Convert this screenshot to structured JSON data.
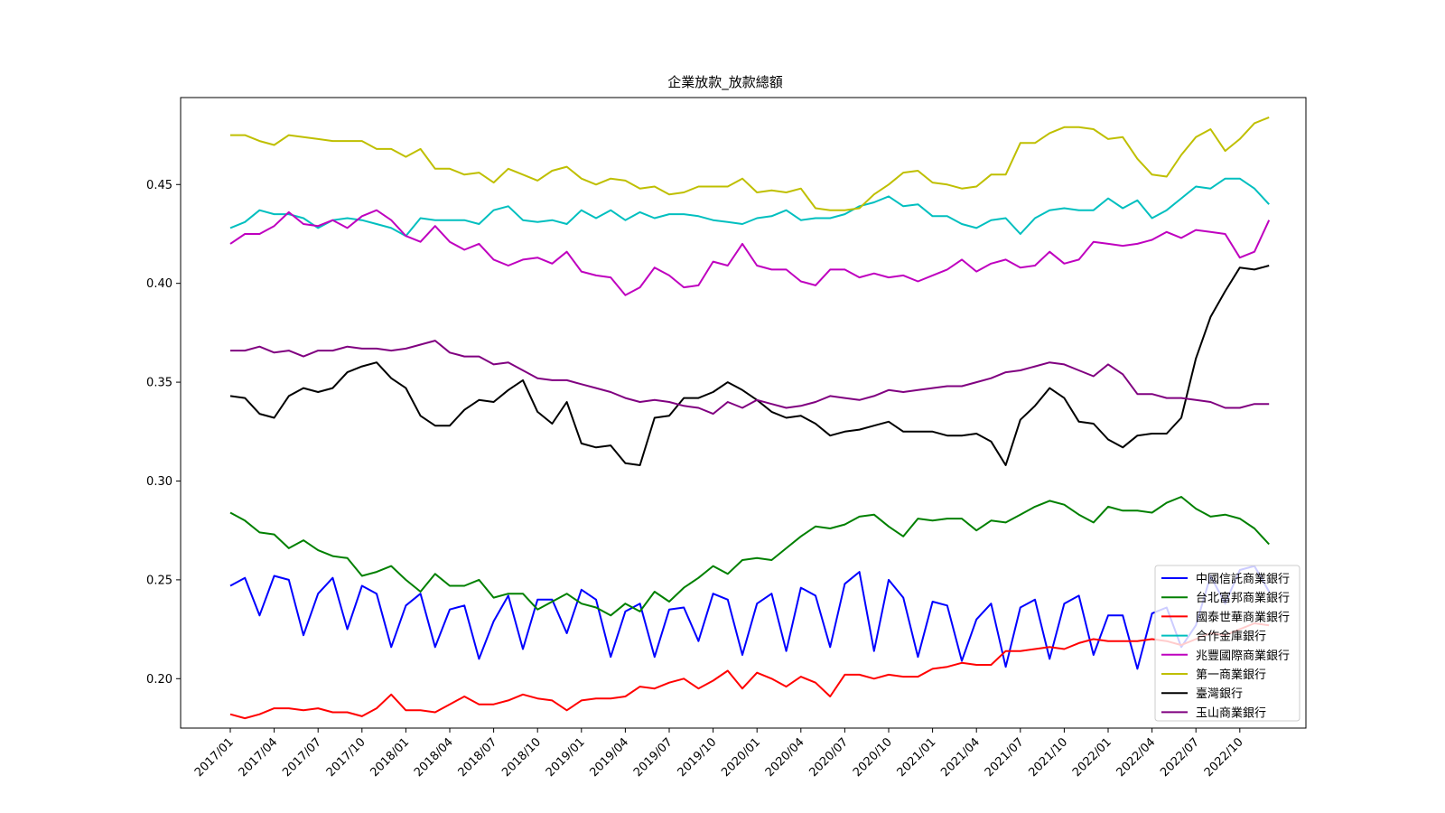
{
  "chart_data": {
    "type": "line",
    "title": "企業放款_放款總額",
    "xlabel": "",
    "ylabel": "",
    "ylim": [
      0.175,
      0.494
    ],
    "yticks": [
      0.2,
      0.25,
      0.3,
      0.35,
      0.4,
      0.45
    ],
    "ytick_labels": [
      "0.20",
      "0.25",
      "0.30",
      "0.35",
      "0.40",
      "0.45"
    ],
    "xtick_labels": [
      "2017/01",
      "2017/04",
      "2017/07",
      "2017/10",
      "2018/01",
      "2018/04",
      "2018/07",
      "2018/10",
      "2019/01",
      "2019/04",
      "2019/07",
      "2019/10",
      "2020/01",
      "2020/04",
      "2020/07",
      "2020/10",
      "2021/01",
      "2021/04",
      "2021/07",
      "2021/10",
      "2022/01",
      "2022/04",
      "2022/07",
      "2022/10"
    ],
    "grid": false,
    "legend_position": "lower-right",
    "x_start": "2017/01",
    "x_end": "2022/12",
    "series": [
      {
        "name": "中國信託商業銀行",
        "color": "#0000ff",
        "values": [
          0.247,
          0.251,
          0.232,
          0.252,
          0.25,
          0.222,
          0.243,
          0.251,
          0.225,
          0.247,
          0.243,
          0.216,
          0.237,
          0.243,
          0.216,
          0.235,
          0.237,
          0.21,
          0.229,
          0.242,
          0.215,
          0.24,
          0.24,
          0.223,
          0.245,
          0.24,
          0.211,
          0.234,
          0.238,
          0.211,
          0.235,
          0.236,
          0.219,
          0.243,
          0.24,
          0.212,
          0.238,
          0.243,
          0.214,
          0.246,
          0.242,
          0.216,
          0.248,
          0.254,
          0.214,
          0.25,
          0.241,
          0.211,
          0.239,
          0.237,
          0.209,
          0.23,
          0.238,
          0.206,
          0.236,
          0.24,
          0.21,
          0.238,
          0.242,
          0.212,
          0.232,
          0.232,
          0.205,
          0.233,
          0.236,
          0.216,
          0.227,
          0.252,
          0.238,
          0.255,
          0.257,
          0.244
        ]
      },
      {
        "name": "台北富邦商業銀行",
        "color": "#008000",
        "values": [
          0.284,
          0.28,
          0.274,
          0.273,
          0.266,
          0.27,
          0.265,
          0.262,
          0.261,
          0.252,
          0.254,
          0.257,
          0.25,
          0.244,
          0.253,
          0.247,
          0.247,
          0.25,
          0.241,
          0.243,
          0.243,
          0.235,
          0.239,
          0.243,
          0.238,
          0.236,
          0.232,
          0.238,
          0.234,
          0.244,
          0.239,
          0.246,
          0.251,
          0.257,
          0.253,
          0.26,
          0.261,
          0.26,
          0.266,
          0.272,
          0.277,
          0.276,
          0.278,
          0.282,
          0.283,
          0.277,
          0.272,
          0.281,
          0.28,
          0.281,
          0.281,
          0.275,
          0.28,
          0.279,
          0.283,
          0.287,
          0.29,
          0.288,
          0.283,
          0.279,
          0.287,
          0.285,
          0.285,
          0.284,
          0.289,
          0.292,
          0.286,
          0.282,
          0.283,
          0.281,
          0.276,
          0.268
        ]
      },
      {
        "name": "國泰世華商業銀行",
        "color": "#ff0000",
        "values": [
          0.182,
          0.18,
          0.182,
          0.185,
          0.185,
          0.184,
          0.185,
          0.183,
          0.183,
          0.181,
          0.185,
          0.192,
          0.184,
          0.184,
          0.183,
          0.187,
          0.191,
          0.187,
          0.187,
          0.189,
          0.192,
          0.19,
          0.189,
          0.184,
          0.189,
          0.19,
          0.19,
          0.191,
          0.196,
          0.195,
          0.198,
          0.2,
          0.195,
          0.199,
          0.204,
          0.195,
          0.203,
          0.2,
          0.196,
          0.201,
          0.198,
          0.191,
          0.202,
          0.202,
          0.2,
          0.202,
          0.201,
          0.201,
          0.205,
          0.206,
          0.208,
          0.207,
          0.207,
          0.214,
          0.214,
          0.215,
          0.216,
          0.215,
          0.218,
          0.22,
          0.219,
          0.219,
          0.219,
          0.22,
          0.219,
          0.217,
          0.22,
          0.223,
          0.222,
          0.225,
          0.228,
          0.227
        ]
      },
      {
        "name": "合作金庫銀行",
        "color": "#00bfbf",
        "values": [
          0.428,
          0.431,
          0.437,
          0.435,
          0.435,
          0.433,
          0.428,
          0.432,
          0.433,
          0.432,
          0.43,
          0.428,
          0.424,
          0.433,
          0.432,
          0.432,
          0.432,
          0.43,
          0.437,
          0.439,
          0.432,
          0.431,
          0.432,
          0.43,
          0.437,
          0.433,
          0.437,
          0.432,
          0.436,
          0.433,
          0.435,
          0.435,
          0.434,
          0.432,
          0.431,
          0.43,
          0.433,
          0.434,
          0.437,
          0.432,
          0.433,
          0.433,
          0.435,
          0.439,
          0.441,
          0.444,
          0.439,
          0.44,
          0.434,
          0.434,
          0.43,
          0.428,
          0.432,
          0.433,
          0.425,
          0.433,
          0.437,
          0.438,
          0.437,
          0.437,
          0.443,
          0.438,
          0.442,
          0.433,
          0.437,
          0.443,
          0.449,
          0.448,
          0.453,
          0.453,
          0.448,
          0.44
        ]
      },
      {
        "name": "兆豐國際商業銀行",
        "color": "#bf00bf",
        "values": [
          0.42,
          0.425,
          0.425,
          0.429,
          0.436,
          0.43,
          0.429,
          0.432,
          0.428,
          0.434,
          0.437,
          0.432,
          0.424,
          0.421,
          0.429,
          0.421,
          0.417,
          0.42,
          0.412,
          0.409,
          0.412,
          0.413,
          0.41,
          0.416,
          0.406,
          0.404,
          0.403,
          0.394,
          0.398,
          0.408,
          0.404,
          0.398,
          0.399,
          0.411,
          0.409,
          0.42,
          0.409,
          0.407,
          0.407,
          0.401,
          0.399,
          0.407,
          0.407,
          0.403,
          0.405,
          0.403,
          0.404,
          0.401,
          0.404,
          0.407,
          0.412,
          0.406,
          0.41,
          0.412,
          0.408,
          0.409,
          0.416,
          0.41,
          0.412,
          0.421,
          0.42,
          0.419,
          0.42,
          0.422,
          0.426,
          0.423,
          0.427,
          0.426,
          0.425,
          0.413,
          0.416,
          0.432
        ]
      },
      {
        "name": "第一商業銀行",
        "color": "#bfbf00",
        "values": [
          0.475,
          0.475,
          0.472,
          0.47,
          0.475,
          0.474,
          0.473,
          0.472,
          0.472,
          0.472,
          0.468,
          0.468,
          0.464,
          0.468,
          0.458,
          0.458,
          0.455,
          0.456,
          0.451,
          0.458,
          0.455,
          0.452,
          0.457,
          0.459,
          0.453,
          0.45,
          0.453,
          0.452,
          0.448,
          0.449,
          0.445,
          0.446,
          0.449,
          0.449,
          0.449,
          0.453,
          0.446,
          0.447,
          0.446,
          0.448,
          0.438,
          0.437,
          0.437,
          0.438,
          0.445,
          0.45,
          0.456,
          0.457,
          0.451,
          0.45,
          0.448,
          0.449,
          0.455,
          0.455,
          0.471,
          0.471,
          0.476,
          0.479,
          0.479,
          0.478,
          0.473,
          0.474,
          0.463,
          0.455,
          0.454,
          0.465,
          0.474,
          0.478,
          0.467,
          0.473,
          0.481,
          0.484
        ]
      },
      {
        "name": "臺灣銀行",
        "color": "#000000",
        "values": [
          0.343,
          0.342,
          0.334,
          0.332,
          0.343,
          0.347,
          0.345,
          0.347,
          0.355,
          0.358,
          0.36,
          0.352,
          0.347,
          0.333,
          0.328,
          0.328,
          0.336,
          0.341,
          0.34,
          0.346,
          0.351,
          0.335,
          0.329,
          0.34,
          0.319,
          0.317,
          0.318,
          0.309,
          0.308,
          0.332,
          0.333,
          0.342,
          0.342,
          0.345,
          0.35,
          0.346,
          0.341,
          0.335,
          0.332,
          0.333,
          0.329,
          0.323,
          0.325,
          0.326,
          0.328,
          0.33,
          0.325,
          0.325,
          0.325,
          0.323,
          0.323,
          0.324,
          0.32,
          0.308,
          0.331,
          0.338,
          0.347,
          0.342,
          0.33,
          0.329,
          0.321,
          0.317,
          0.323,
          0.324,
          0.324,
          0.332,
          0.362,
          0.383,
          0.396,
          0.408,
          0.407,
          0.409
        ]
      },
      {
        "name": "玉山商業銀行",
        "color": "#800080",
        "values": [
          0.366,
          0.366,
          0.368,
          0.365,
          0.366,
          0.363,
          0.366,
          0.366,
          0.368,
          0.367,
          0.367,
          0.366,
          0.367,
          0.369,
          0.371,
          0.365,
          0.363,
          0.363,
          0.359,
          0.36,
          0.356,
          0.352,
          0.351,
          0.351,
          0.349,
          0.347,
          0.345,
          0.342,
          0.34,
          0.341,
          0.34,
          0.338,
          0.337,
          0.334,
          0.34,
          0.337,
          0.341,
          0.339,
          0.337,
          0.338,
          0.34,
          0.343,
          0.342,
          0.341,
          0.343,
          0.346,
          0.345,
          0.346,
          0.347,
          0.348,
          0.348,
          0.35,
          0.352,
          0.355,
          0.356,
          0.358,
          0.36,
          0.359,
          0.356,
          0.353,
          0.359,
          0.354,
          0.344,
          0.344,
          0.342,
          0.342,
          0.341,
          0.34,
          0.337,
          0.337,
          0.339,
          0.339
        ]
      }
    ]
  }
}
